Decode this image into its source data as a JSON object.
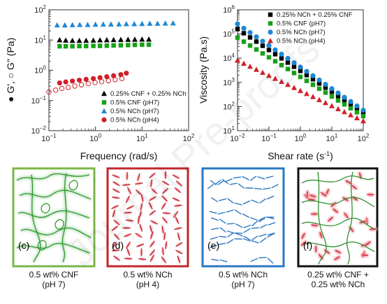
{
  "chart_data": [
    {
      "type": "scatter",
      "xlabel": "Frequency (rad/s)",
      "ylabel": "● G', ○ G\" (Pa)",
      "xscale": "log",
      "yscale": "log",
      "xlim": [
        0.1,
        100
      ],
      "ylim": [
        0.01,
        100
      ],
      "xticks": [
        0.1,
        1,
        10,
        100
      ],
      "yticks": [
        0.01,
        0.1,
        1,
        10,
        100
      ],
      "legend_position": "bottom-right",
      "series": [
        {
          "name": "0.25% CNF + 0.25% NCh",
          "marker": "triangle",
          "color": "#000000",
          "x": [
            0.17,
            0.23,
            0.32,
            0.45,
            0.63,
            0.9,
            1.25,
            1.75,
            2.45,
            3.5,
            5.0,
            7.0,
            10,
            14
          ],
          "y": [
            10,
            9.7,
            9.5,
            9.5,
            9.6,
            9.7,
            9.9,
            10,
            10.1,
            10.2,
            10.3,
            10.4,
            10.5,
            10.5
          ]
        },
        {
          "name": "0.5% CNF (pH7)",
          "marker": "square",
          "color": "#17a017",
          "x": [
            0.17,
            0.23,
            0.32,
            0.45,
            0.63,
            0.9,
            1.25,
            1.75,
            2.45,
            3.5,
            5.0,
            7.0,
            10,
            14
          ],
          "y": [
            6.2,
            6.2,
            6.2,
            6.3,
            6.3,
            6.4,
            6.4,
            6.5,
            6.6,
            6.7,
            6.8,
            6.9,
            7.0,
            7.0
          ]
        },
        {
          "name": "0.5% NCh (pH7)",
          "marker": "triangle",
          "color": "#1e88d6",
          "x": [
            0.15,
            0.22,
            0.32,
            0.46,
            0.68,
            1.0,
            1.47,
            2.15,
            3.2,
            4.6,
            6.8,
            10,
            14.7,
            21.5,
            31.6,
            46.4
          ],
          "y": [
            31,
            31,
            31.5,
            32,
            32,
            32.5,
            33,
            33,
            33.5,
            34,
            34,
            34.5,
            35,
            35,
            35.5,
            36
          ]
        },
        {
          "name": "0.5% NCh (pH4)",
          "marker": "circle",
          "color": "#d0202a",
          "x": [
            0.17,
            0.23,
            0.32,
            0.45,
            0.63,
            0.9,
            1.25,
            1.75,
            2.45,
            3.5,
            4.6
          ],
          "y": [
            0.38,
            0.41,
            0.44,
            0.47,
            0.5,
            0.53,
            0.57,
            0.61,
            0.66,
            0.72,
            0.8
          ]
        },
        {
          "name": "",
          "marker": "circle-open",
          "color": "#d0202a",
          "x": [
            0.1,
            0.14,
            0.19,
            0.26,
            0.36,
            0.5,
            0.7,
            0.98,
            1.36,
            1.9,
            2.65,
            3.7
          ],
          "y": [
            0.19,
            0.22,
            0.25,
            0.27,
            0.3,
            0.33,
            0.36,
            0.39,
            0.42,
            0.45,
            0.49,
            0.53
          ]
        }
      ]
    },
    {
      "type": "scatter",
      "xlabel": "Shear rate (s⁻¹)",
      "ylabel": "Viscosity (Pa.s)",
      "xscale": "log",
      "yscale": "log",
      "xlim": [
        0.01,
        100
      ],
      "ylim": [
        10,
        1000000
      ],
      "xticks": [
        0.01,
        0.1,
        1,
        10,
        100
      ],
      "yticks": [
        10,
        100,
        1000,
        10000,
        100000,
        1000000
      ],
      "legend_position": "top-right",
      "series": [
        {
          "name": "0.25% NCh + 0.25% CNF",
          "marker": "square",
          "color": "#000000",
          "start": 0.01,
          "end": 100,
          "y_start": 160000,
          "y_end": 55,
          "n": 21
        },
        {
          "name": "0.5% CNF (pH7)",
          "marker": "square",
          "color": "#17a017",
          "start": 0.01,
          "end": 100,
          "y_start": 70000,
          "y_end": 40,
          "n": 21
        },
        {
          "name": "0.5% NCh (pH7)",
          "marker": "circle",
          "color": "#1e88d6",
          "start": 0.01,
          "end": 100,
          "y_start": 260000,
          "y_end": 70,
          "n": 21
        },
        {
          "name": "0.5% NCh (pH4)",
          "marker": "triangle",
          "color": "#d0202a",
          "start": 0.01,
          "end": 100,
          "y_start": 8000,
          "y_end": 25,
          "n": 21
        }
      ]
    }
  ],
  "schematics": [
    {
      "letter": "(c)",
      "caption": [
        "0.5 wt% CNF",
        "(pH 7)"
      ],
      "border": "#7ab648"
    },
    {
      "letter": "(d)",
      "caption": [
        "0.5 wt% NCh",
        "(pH 4)"
      ],
      "border": "#c3262a"
    },
    {
      "letter": "(e)",
      "caption": [
        "0.5 wt% NCh",
        "(pH 7)"
      ],
      "border": "#2a78c4"
    },
    {
      "letter": "(f)",
      "caption": [
        "0.25 wt% CNF +",
        "0.25 wt% NCh"
      ],
      "border": "#111111"
    }
  ],
  "watermark": "Journal Pre-proofs"
}
